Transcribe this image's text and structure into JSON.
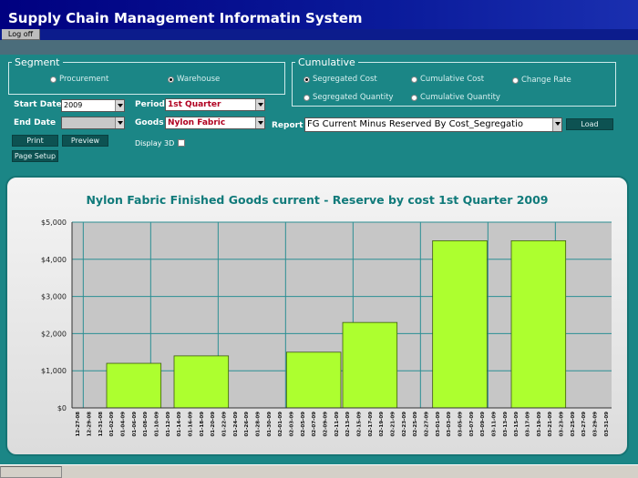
{
  "app": {
    "title": "Supply Chain Management Informatin System",
    "logoff_label": "Log off"
  },
  "segment": {
    "legend": "Segment",
    "options": [
      {
        "label": "Procurement",
        "selected": false
      },
      {
        "label": "Warehouse",
        "selected": true
      }
    ]
  },
  "cumulative": {
    "legend": "Cumulative",
    "options": [
      {
        "label": "Segregated Cost",
        "selected": true
      },
      {
        "label": "Cumulative Cost",
        "selected": false
      },
      {
        "label": "Change Rate",
        "selected": false
      },
      {
        "label": "Segregated Quantity",
        "selected": false
      },
      {
        "label": "Cumulative Quantity",
        "selected": false
      }
    ]
  },
  "filters": {
    "start_date_label": "Start Date",
    "start_date_value": "2009",
    "end_date_label": "End Date",
    "end_date_value": "",
    "period_label": "Period",
    "period_value": "1st Quarter",
    "goods_label": "Goods",
    "goods_value": "Nylon Fabric",
    "report_label": "Report",
    "report_value": "FG Current Minus Reserved By Cost_Segregatio",
    "display3d_label": "Display 3D",
    "display3d_checked": false
  },
  "buttons": {
    "print": "Print",
    "preview": "Preview",
    "page_setup": "Page Setup",
    "load": "Load"
  },
  "chart_data": {
    "type": "bar",
    "title": "Nylon Fabric Finished Goods current - Reserve by cost 1st Quarter 2009",
    "xlabel": "",
    "ylabel": "",
    "ylim": [
      0,
      5000
    ],
    "yticks": [
      "$0",
      "$1,000",
      "$2,000",
      "$3,000",
      "$4,000",
      "$5,000"
    ],
    "categories": [
      "12-27-08",
      "12-29-08",
      "12-31-08",
      "01-02-09",
      "01-04-09",
      "01-06-09",
      "01-08-09",
      "01-10-09",
      "01-12-09",
      "01-14-09",
      "01-16-09",
      "01-18-09",
      "01-20-09",
      "01-22-09",
      "01-24-09",
      "01-26-09",
      "01-28-09",
      "01-30-09",
      "02-01-09",
      "02-03-09",
      "02-05-09",
      "02-07-09",
      "02-09-09",
      "02-11-09",
      "02-13-09",
      "02-15-09",
      "02-17-09",
      "02-19-09",
      "02-21-09",
      "02-23-09",
      "02-25-09",
      "02-27-09",
      "03-01-09",
      "03-03-09",
      "03-05-09",
      "03-07-09",
      "03-09-09",
      "03-11-09",
      "03-13-09",
      "03-15-09",
      "03-17-09",
      "03-19-09",
      "03-21-09",
      "03-23-09",
      "03-25-09",
      "03-27-09",
      "03-29-09",
      "03-31-09"
    ],
    "bars": [
      {
        "start": 3,
        "end": 7,
        "value": 1200
      },
      {
        "start": 9,
        "end": 13,
        "value": 1400
      },
      {
        "start": 19,
        "end": 23,
        "value": 1500
      },
      {
        "start": 24,
        "end": 28,
        "value": 2300
      },
      {
        "start": 32,
        "end": 36,
        "value": 4500
      },
      {
        "start": 39,
        "end": 43,
        "value": 4500
      }
    ],
    "vgrid_after": [
      0,
      6,
      12,
      18,
      24,
      30,
      36,
      42
    ],
    "bar_color": "#adff2f",
    "grid": true
  }
}
